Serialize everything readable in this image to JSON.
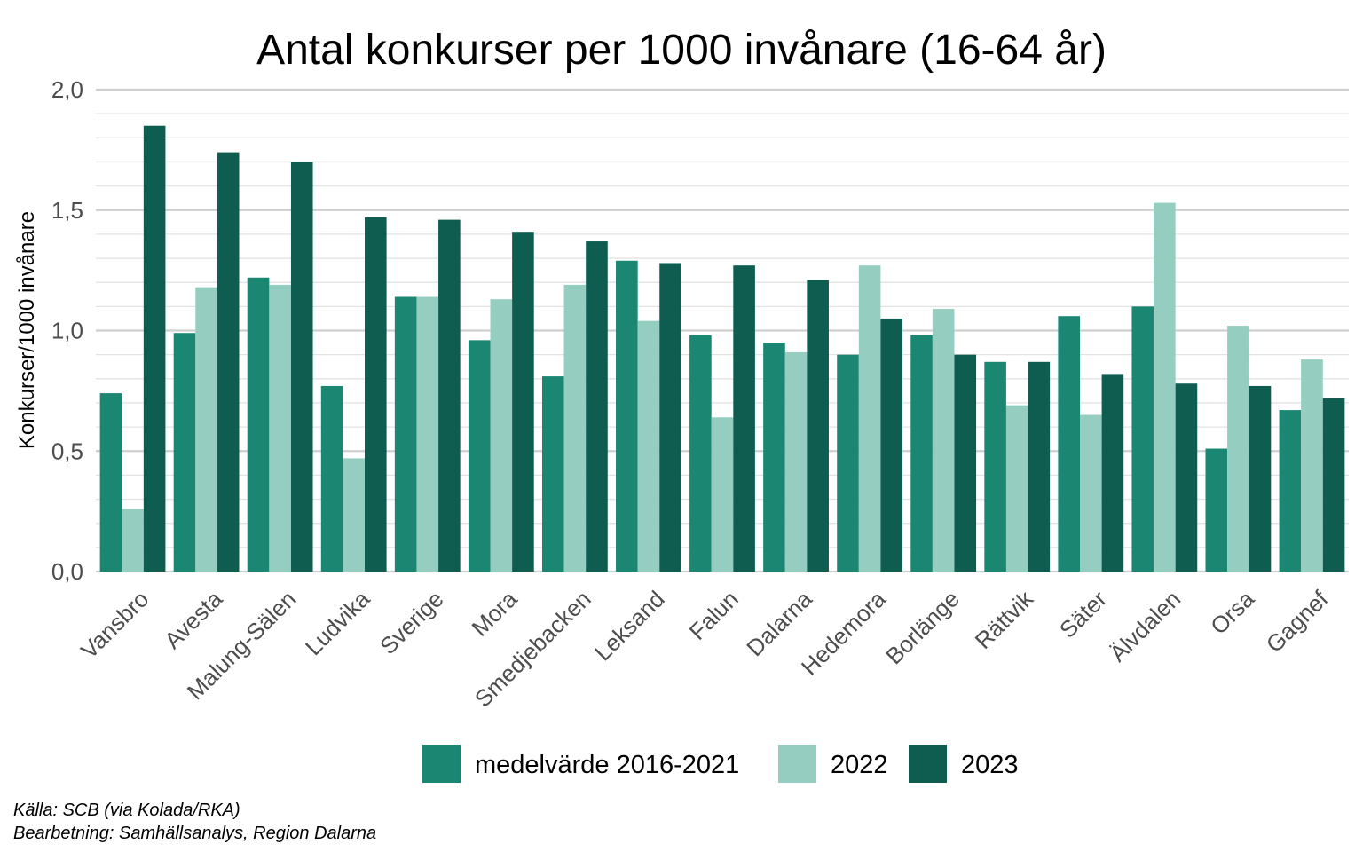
{
  "chart_data": {
    "type": "bar",
    "title": "Antal konkurser per 1000 invånare (16-64 år)",
    "xlabel": "",
    "ylabel": "Konkurser/1000 invånare",
    "ylim": [
      0,
      2.0
    ],
    "yticks": [
      "0,0",
      "0,5",
      "1,0",
      "1,5",
      "2,0"
    ],
    "categories": [
      "Vansbro",
      "Avesta",
      "Malung-Sälen",
      "Ludvika",
      "Sverige",
      "Mora",
      "Smedjebacken",
      "Leksand",
      "Falun",
      "Dalarna",
      "Hedemora",
      "Borlänge",
      "Rättvik",
      "Säter",
      "Älvdalen",
      "Orsa",
      "Gagnef"
    ],
    "series": [
      {
        "name": "medelvärde 2016-2021",
        "color": "#1b8672",
        "values": [
          0.74,
          0.99,
          1.22,
          0.77,
          1.14,
          0.96,
          0.81,
          1.29,
          0.98,
          0.95,
          0.9,
          0.98,
          0.87,
          1.06,
          1.1,
          0.51,
          0.67
        ]
      },
      {
        "name": "2022",
        "color": "#95cec0",
        "values": [
          0.26,
          1.18,
          1.19,
          0.47,
          1.14,
          1.13,
          1.19,
          1.04,
          0.64,
          0.91,
          1.27,
          1.09,
          0.69,
          0.65,
          1.53,
          1.02,
          0.88
        ]
      },
      {
        "name": "2023",
        "color": "#0f5d51",
        "values": [
          1.85,
          1.74,
          1.7,
          1.47,
          1.46,
          1.41,
          1.37,
          1.28,
          1.27,
          1.21,
          1.05,
          0.9,
          0.87,
          0.82,
          0.78,
          0.77,
          0.72
        ]
      }
    ],
    "grid": true,
    "legend": "bottom"
  },
  "caption": {
    "source": "Källa: SCB (via Kolada/RKA)",
    "processing": "Bearbetning: Samhällsanalys, Region Dalarna"
  }
}
